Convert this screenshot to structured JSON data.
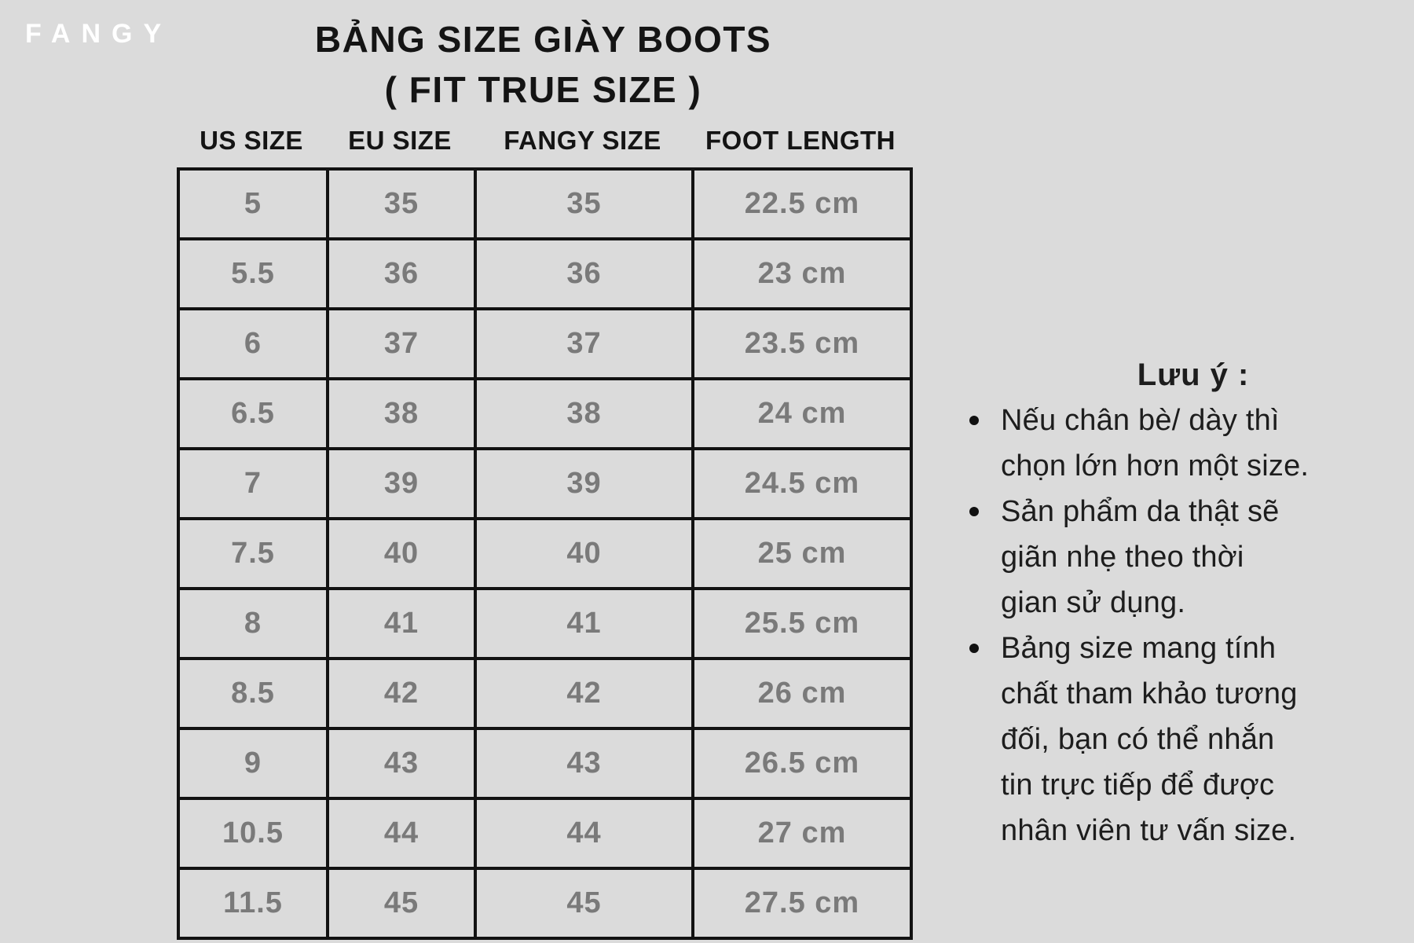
{
  "brand": {
    "logo": "FANGY"
  },
  "header": {
    "title": "BẢNG SIZE GIÀY BOOTS",
    "subtitle": "( FIT TRUE SIZE )"
  },
  "table": {
    "columns": [
      "US SIZE",
      "EU SIZE",
      "FANGY SIZE",
      "FOOT LENGTH"
    ],
    "rows": [
      [
        "5",
        "35",
        "35",
        "22.5 cm"
      ],
      [
        "5.5",
        "36",
        "36",
        "23 cm"
      ],
      [
        "6",
        "37",
        "37",
        "23.5 cm"
      ],
      [
        "6.5",
        "38",
        "38",
        "24 cm"
      ],
      [
        "7",
        "39",
        "39",
        "24.5 cm"
      ],
      [
        "7.5",
        "40",
        "40",
        "25 cm"
      ],
      [
        "8",
        "41",
        "41",
        "25.5 cm"
      ],
      [
        "8.5",
        "42",
        "42",
        "26 cm"
      ],
      [
        "9",
        "43",
        "43",
        "26.5 cm"
      ],
      [
        "10.5",
        "44",
        "44",
        "27 cm"
      ],
      [
        "11.5",
        "45",
        "45",
        "27.5 cm"
      ]
    ]
  },
  "notes": {
    "heading": "Lưu ý :",
    "bullets": [
      [
        "Nếu chân bè/ dày thì",
        "chọn lớn hơn một size."
      ],
      [
        "Sản phẩm da thật sẽ",
        "giãn nhẹ theo thời",
        "gian sử dụng."
      ],
      [
        "Bảng size mang tính",
        "chất tham khảo tương",
        "đối, bạn có thể nhắn",
        "tin trực tiếp để được",
        "nhân viên tư vấn size."
      ]
    ]
  },
  "chart_data": {
    "type": "table",
    "title": "BẢNG SIZE GIÀY BOOTS ( FIT TRUE SIZE )",
    "columns": [
      "US SIZE",
      "EU SIZE",
      "FANGY SIZE",
      "FOOT LENGTH"
    ],
    "rows": [
      [
        "5",
        "35",
        "35",
        "22.5 cm"
      ],
      [
        "5.5",
        "36",
        "36",
        "23 cm"
      ],
      [
        "6",
        "37",
        "37",
        "23.5 cm"
      ],
      [
        "6.5",
        "38",
        "38",
        "24 cm"
      ],
      [
        "7",
        "39",
        "39",
        "24.5 cm"
      ],
      [
        "7.5",
        "40",
        "40",
        "25 cm"
      ],
      [
        "8",
        "41",
        "41",
        "25.5 cm"
      ],
      [
        "8.5",
        "42",
        "42",
        "26 cm"
      ],
      [
        "9",
        "43",
        "43",
        "26.5 cm"
      ],
      [
        "10.5",
        "44",
        "44",
        "27 cm"
      ],
      [
        "11.5",
        "45",
        "45",
        "27.5 cm"
      ]
    ]
  },
  "colors": {
    "background": "#dbdbdb",
    "table_border": "#121212",
    "value_text": "#7a7a7a",
    "heading_text": "#141414",
    "logo_text": "#ffffff"
  }
}
